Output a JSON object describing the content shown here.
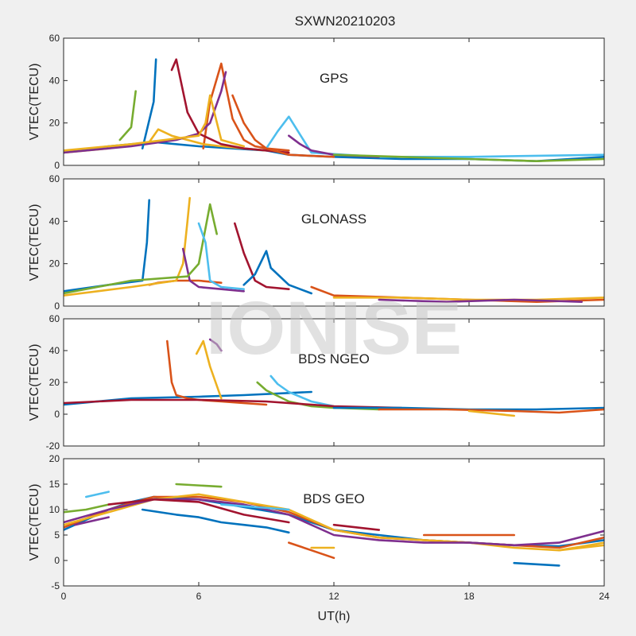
{
  "figure": {
    "title": "SXWN20210203",
    "xlabel": "UT(h)",
    "watermark": "IONISE",
    "line_colors": [
      "#0072BD",
      "#D95319",
      "#EDB120",
      "#7E2F8E",
      "#77AC30",
      "#4DBEEE",
      "#A2142F"
    ],
    "x_ticks": [
      "0",
      "6",
      "12",
      "18",
      "24"
    ]
  },
  "chart_data": [
    {
      "type": "line",
      "title": "GPS",
      "ylabel": "VTEC(TECU)",
      "xlim": [
        0,
        24
      ],
      "ylim": [
        0,
        60
      ],
      "y_ticks": [
        "0",
        "20",
        "40",
        "60"
      ],
      "series": [
        {
          "x": [
            0,
            2,
            4,
            6,
            7.5,
            9,
            10,
            12,
            15,
            18,
            21,
            24
          ],
          "y": [
            6,
            9,
            11,
            9,
            8,
            7,
            5,
            4,
            3,
            3,
            2,
            4
          ]
        },
        {
          "x": [
            6.2,
            6.5,
            7,
            7.5,
            8,
            8.5,
            9,
            10
          ],
          "y": [
            8,
            30,
            48,
            22,
            12,
            9,
            8,
            7
          ]
        },
        {
          "x": [
            0,
            2,
            3.8,
            4.2,
            4.8,
            5.5,
            6.2,
            7,
            8,
            9
          ],
          "y": [
            6,
            8,
            11,
            17,
            14,
            12,
            10,
            9,
            8,
            7
          ]
        },
        {
          "x": [
            0,
            3,
            5,
            6,
            6.5,
            7,
            7.2
          ],
          "y": [
            6,
            9,
            12,
            15,
            20,
            35,
            44
          ]
        },
        {
          "x": [
            2.5,
            3,
            3.2
          ],
          "y": [
            12,
            18,
            35
          ]
        },
        {
          "x": [
            9,
            9.5,
            10,
            11,
            14,
            18,
            24
          ],
          "y": [
            8,
            16,
            23,
            6,
            4,
            4,
            5
          ]
        },
        {
          "x": [
            4.8,
            5,
            5.5,
            6,
            7,
            8,
            9,
            10
          ],
          "y": [
            45,
            50,
            25,
            15,
            10,
            8,
            7,
            6
          ]
        },
        {
          "x": [
            3.5,
            4,
            4.1
          ],
          "y": [
            8,
            30,
            50
          ]
        },
        {
          "x": [
            7.5,
            8,
            8.5,
            9,
            10,
            12
          ],
          "y": [
            33,
            20,
            12,
            8,
            5,
            4
          ]
        },
        {
          "x": [
            0,
            3,
            6,
            6.3,
            6.5,
            7,
            8
          ],
          "y": [
            7,
            10,
            14,
            20,
            33,
            12,
            9
          ]
        },
        {
          "x": [
            10,
            10.5,
            11,
            12,
            14
          ],
          "y": [
            14,
            10,
            7,
            5,
            4
          ]
        },
        {
          "x": [
            12,
            15,
            18,
            21,
            24
          ],
          "y": [
            5,
            4,
            3,
            2,
            3
          ]
        }
      ]
    },
    {
      "type": "line",
      "title": "GLONASS",
      "ylabel": "VTEC(TECU)",
      "xlim": [
        0,
        24
      ],
      "ylim": [
        0,
        60
      ],
      "y_ticks": [
        "0",
        "20",
        "40",
        "60"
      ],
      "series": [
        {
          "x": [
            0,
            2,
            3.5,
            3.7,
            3.8
          ],
          "y": [
            7,
            10,
            12,
            30,
            50
          ]
        },
        {
          "x": [
            3.8,
            4.2,
            5,
            6,
            7
          ],
          "y": [
            10,
            11,
            12,
            12,
            11
          ]
        },
        {
          "x": [
            0,
            3,
            5,
            5.3,
            5.5,
            5.6
          ],
          "y": [
            5,
            9,
            12,
            20,
            40,
            51
          ]
        },
        {
          "x": [
            5.3,
            5.6,
            6,
            7,
            8
          ],
          "y": [
            27,
            12,
            9,
            8,
            7
          ]
        },
        {
          "x": [
            0,
            3,
            5.5,
            6,
            6.5,
            6.8
          ],
          "y": [
            6,
            12,
            14,
            20,
            48,
            34
          ]
        },
        {
          "x": [
            6,
            6.3,
            6.5,
            7,
            8
          ],
          "y": [
            39,
            30,
            12,
            9,
            8
          ]
        },
        {
          "x": [
            7.6,
            8,
            8.5,
            9,
            10
          ],
          "y": [
            39,
            25,
            12,
            9,
            8
          ]
        },
        {
          "x": [
            8,
            8.5,
            9,
            9.2,
            10,
            11
          ],
          "y": [
            10,
            15,
            26,
            18,
            10,
            6
          ]
        },
        {
          "x": [
            11,
            12,
            15,
            18,
            21,
            24
          ],
          "y": [
            9,
            5,
            4,
            3,
            2,
            3
          ]
        },
        {
          "x": [
            12,
            15,
            18,
            21,
            24
          ],
          "y": [
            4,
            4,
            3,
            3,
            4
          ]
        },
        {
          "x": [
            14,
            17,
            20,
            23
          ],
          "y": [
            3,
            2,
            3,
            2
          ]
        }
      ]
    },
    {
      "type": "line",
      "title": "BDS NGEO",
      "ylabel": "VTEC(TECU)",
      "xlim": [
        0,
        24
      ],
      "ylim": [
        -20,
        60
      ],
      "y_ticks": [
        "-20",
        "0",
        "20",
        "40",
        "60"
      ],
      "series": [
        {
          "x": [
            0,
            3,
            6,
            8,
            11
          ],
          "y": [
            6,
            10,
            11,
            12,
            14
          ]
        },
        {
          "x": [
            4.6,
            4.8,
            5,
            5.5,
            6,
            7,
            9
          ],
          "y": [
            46,
            20,
            12,
            10,
            9,
            8,
            6
          ]
        },
        {
          "x": [
            5.9,
            6.2,
            6.5,
            7
          ],
          "y": [
            38,
            46,
            30,
            10
          ]
        },
        {
          "x": [
            6.5,
            6.8,
            7
          ],
          "y": [
            47,
            44,
            40
          ]
        },
        {
          "x": [
            8.6,
            9,
            10,
            11,
            12,
            14
          ],
          "y": [
            20,
            15,
            8,
            5,
            4,
            3
          ]
        },
        {
          "x": [
            9.2,
            9.5,
            10,
            11,
            12
          ],
          "y": [
            24,
            19,
            14,
            8,
            5
          ]
        },
        {
          "x": [
            0,
            3,
            6,
            9,
            12,
            15
          ],
          "y": [
            7,
            9,
            9,
            8,
            5,
            4
          ]
        },
        {
          "x": [
            12,
            15,
            18,
            21,
            24
          ],
          "y": [
            4,
            4,
            3,
            3,
            4
          ]
        },
        {
          "x": [
            14,
            17,
            20,
            22,
            24
          ],
          "y": [
            3,
            3,
            2,
            1,
            3
          ]
        },
        {
          "x": [
            18,
            20
          ],
          "y": [
            2,
            -1
          ]
        }
      ]
    },
    {
      "type": "line",
      "title": "BDS GEO",
      "ylabel": "VTEC(TECU)",
      "xlim": [
        0,
        24
      ],
      "ylim": [
        -5,
        20
      ],
      "y_ticks": [
        "-5",
        "0",
        "5",
        "10",
        "15",
        "20"
      ],
      "series": [
        {
          "x": [
            0,
            1,
            2,
            3,
            4,
            6,
            8,
            10,
            12,
            14,
            16,
            18,
            20,
            22,
            24
          ],
          "y": [
            6,
            8,
            10,
            11.5,
            12.5,
            12,
            10.5,
            9,
            6,
            5,
            4,
            3.5,
            3,
            2.8,
            4
          ]
        },
        {
          "x": [
            0,
            2,
            4,
            6,
            8,
            10,
            12,
            14,
            16,
            18,
            20,
            22,
            24
          ],
          "y": [
            6.5,
            10,
            12.5,
            12.5,
            11.5,
            9.5,
            6,
            4.5,
            4,
            3.5,
            3,
            2.5,
            4.5
          ]
        },
        {
          "x": [
            0,
            2,
            4,
            6,
            8,
            10,
            12,
            14,
            16,
            18,
            20,
            22,
            24
          ],
          "y": [
            7,
            9.5,
            12,
            13,
            11.5,
            10,
            6,
            4.5,
            4,
            3.5,
            2.5,
            2,
            3
          ]
        },
        {
          "x": [
            0,
            2,
            4,
            6,
            8,
            10,
            12,
            14,
            16,
            18,
            20,
            22,
            24
          ],
          "y": [
            7.5,
            10,
            12,
            12,
            11,
            9,
            5,
            4,
            3.5,
            3.5,
            3,
            3.5,
            5.8
          ]
        },
        {
          "x": [
            0,
            1,
            2
          ],
          "y": [
            9.5,
            10,
            11
          ]
        },
        {
          "x": [
            1,
            2
          ],
          "y": [
            12.5,
            13.5
          ]
        },
        {
          "x": [
            2,
            4,
            6,
            8,
            10
          ],
          "y": [
            11,
            12,
            11.5,
            9,
            7.5
          ]
        },
        {
          "x": [
            3.5,
            5,
            6,
            7,
            8,
            9,
            10
          ],
          "y": [
            10,
            9,
            8.5,
            7.5,
            7,
            6.5,
            5.5
          ]
        },
        {
          "x": [
            10,
            11,
            12
          ],
          "y": [
            3.5,
            2,
            0.5
          ]
        },
        {
          "x": [
            11,
            12
          ],
          "y": [
            2.5,
            2.5
          ]
        },
        {
          "x": [
            0.5,
            2
          ],
          "y": [
            7,
            8.5
          ]
        },
        {
          "x": [
            5,
            7
          ],
          "y": [
            15,
            14.5
          ]
        },
        {
          "x": [
            7,
            10
          ],
          "y": [
            11,
            10
          ]
        },
        {
          "x": [
            12,
            14
          ],
          "y": [
            7,
            6
          ]
        },
        {
          "x": [
            20,
            22
          ],
          "y": [
            -0.5,
            -1
          ]
        },
        {
          "x": [
            16,
            18,
            20
          ],
          "y": [
            5,
            5,
            5
          ]
        },
        {
          "x": [
            22,
            24
          ],
          "y": [
            2,
            3.5
          ]
        }
      ]
    }
  ]
}
